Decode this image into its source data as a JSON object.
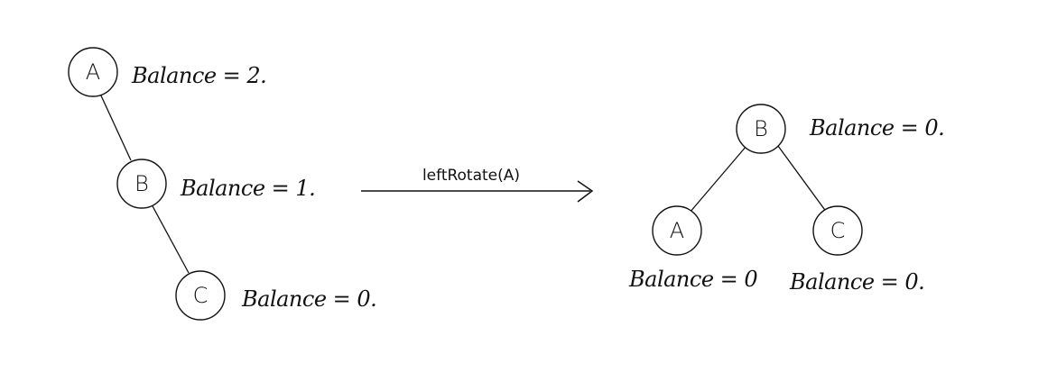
{
  "before_tree": {
    "nodes": [
      {
        "id": "A",
        "label": "A",
        "balance": "Balance = 2."
      },
      {
        "id": "B",
        "label": "B",
        "balance": "Balance = 1."
      },
      {
        "id": "C",
        "label": "C",
        "balance": "Balance = 0."
      }
    ],
    "edges": [
      [
        "A",
        "B"
      ],
      [
        "B",
        "C"
      ]
    ]
  },
  "operation": {
    "label": "leftRotate(A)"
  },
  "after_tree": {
    "nodes": [
      {
        "id": "B",
        "label": "B",
        "balance": "Balance = 0."
      },
      {
        "id": "A",
        "label": "A",
        "balance": "Balance = 0"
      },
      {
        "id": "C",
        "label": "C",
        "balance": "Balance = 0."
      }
    ],
    "edges": [
      [
        "B",
        "A"
      ],
      [
        "B",
        "C"
      ]
    ]
  }
}
